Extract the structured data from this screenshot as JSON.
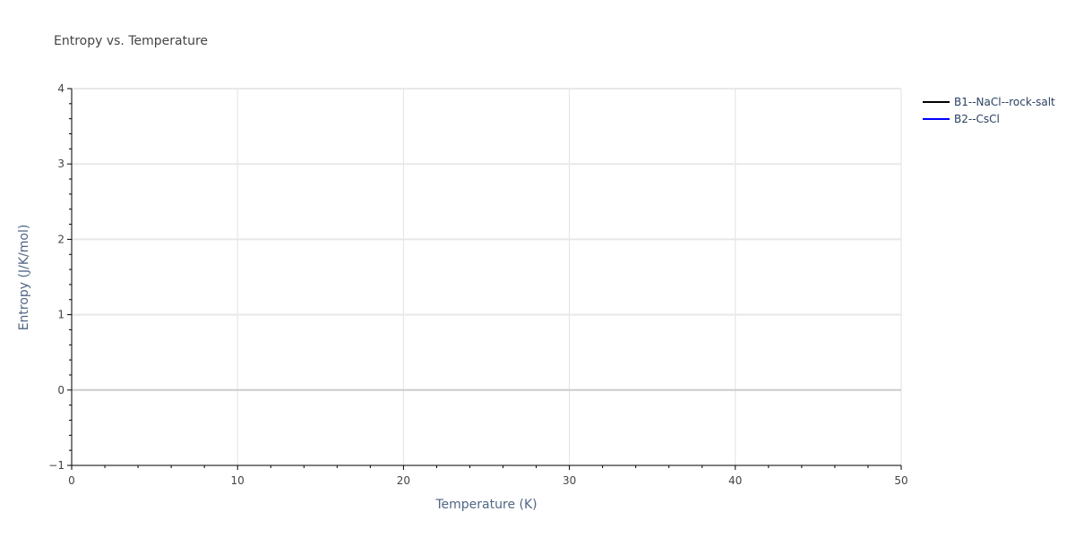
{
  "chart_data": {
    "type": "line",
    "title": "Entropy vs. Temperature",
    "xlabel": "Temperature (K)",
    "ylabel": "Entropy (J/K/mol)",
    "xlim": [
      0,
      50
    ],
    "ylim": [
      -1,
      4
    ],
    "xticks": [
      "0",
      "10",
      "20",
      "30",
      "40",
      "50"
    ],
    "yticks": [
      "−1",
      "0",
      "1",
      "2",
      "3",
      "4"
    ],
    "grid": true,
    "legend_placement": "top-right",
    "series": [
      {
        "name": "B1--NaCl--rock-salt",
        "color": "#000000",
        "x": [],
        "y": []
      },
      {
        "name": "B2--CsCl",
        "color": "#0000ff",
        "x": [],
        "y": []
      }
    ]
  }
}
